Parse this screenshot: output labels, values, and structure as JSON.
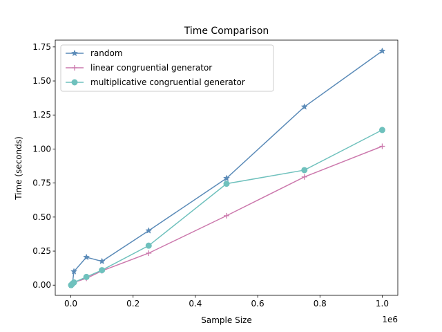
{
  "chart_data": {
    "type": "line",
    "title": "Time Comparison",
    "xlabel": "Sample Size",
    "ylabel": "Time (seconds)",
    "x_offset_label": "1e6",
    "x_scale": 1000000,
    "xlim": [
      -50000,
      1050000
    ],
    "ylim": [
      -0.075,
      1.8
    ],
    "x_ticks": [
      0,
      200000,
      400000,
      600000,
      800000,
      1000000
    ],
    "x_tick_labels": [
      "0.0",
      "0.2",
      "0.4",
      "0.6",
      "0.8",
      "1.0"
    ],
    "y_ticks": [
      0,
      0.25,
      0.5,
      0.75,
      1.0,
      1.25,
      1.5,
      1.75
    ],
    "y_tick_labels": [
      "0.00",
      "0.25",
      "0.50",
      "0.75",
      "1.00",
      "1.25",
      "1.50",
      "1.75"
    ],
    "grid": false,
    "legend_position": "top-left",
    "series": [
      {
        "name": "random",
        "color": "#5b8bb8",
        "marker": "star",
        "x": [
          1000,
          5000,
          10000,
          50000,
          100000,
          250000,
          500000,
          750000,
          1000000
        ],
        "y": [
          0.0,
          0.01,
          0.1,
          0.205,
          0.175,
          0.4,
          0.785,
          1.31,
          1.72
        ]
      },
      {
        "name": "linear congruential generator",
        "color": "#cc79ad",
        "marker": "plus",
        "x": [
          1000,
          5000,
          10000,
          50000,
          100000,
          250000,
          500000,
          750000,
          1000000
        ],
        "y": [
          0.0,
          0.005,
          0.02,
          0.05,
          0.105,
          0.235,
          0.51,
          0.795,
          1.02
        ]
      },
      {
        "name": "multiplicative congruential generator",
        "color": "#6fc1bd",
        "marker": "circle",
        "x": [
          1000,
          5000,
          10000,
          50000,
          100000,
          250000,
          500000,
          750000,
          1000000
        ],
        "y": [
          0.0,
          0.01,
          0.02,
          0.06,
          0.11,
          0.29,
          0.745,
          0.845,
          1.14
        ]
      }
    ]
  }
}
